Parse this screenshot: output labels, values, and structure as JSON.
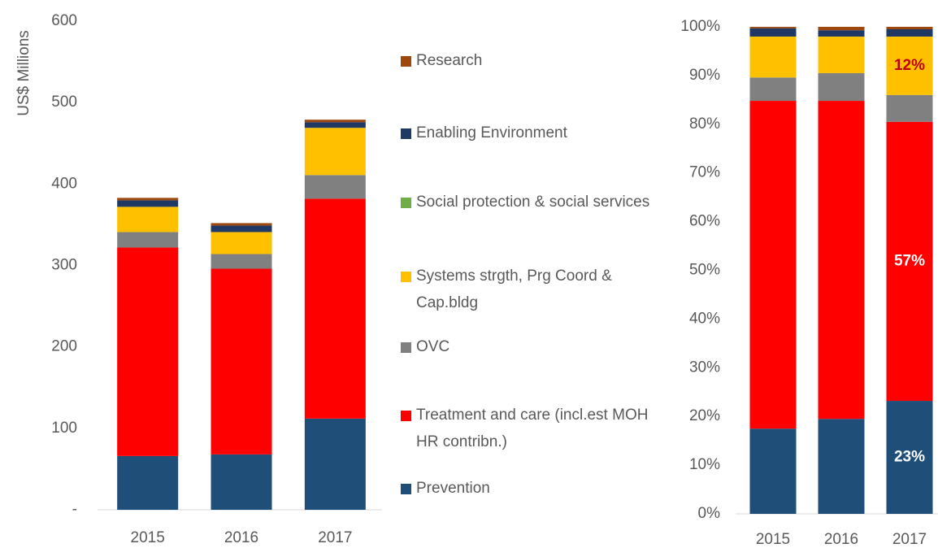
{
  "chart_data": [
    {
      "type": "stacked_bar",
      "y_label": "US$ Millions",
      "categories": [
        "2015",
        "2016",
        "2017"
      ],
      "ylim": [
        0,
        600
      ],
      "yticks": [
        {
          "value": 0,
          "label": "-"
        },
        100,
        200,
        300,
        400,
        500,
        600
      ],
      "series": [
        {
          "name": "Prevention",
          "color": "#1f4e79",
          "values": [
            66,
            68,
            112
          ]
        },
        {
          "name": "Treatment and care (incl.est MOH HR contribn.)",
          "color": "#ff0000",
          "values": [
            256,
            228,
            270
          ]
        },
        {
          "name": "OVC",
          "color": "#808080",
          "values": [
            19,
            18,
            29
          ]
        },
        {
          "name": "Systems strgth, Prg Coord & Cap.bldg",
          "color": "#ffc000",
          "values": [
            31,
            27,
            58
          ]
        },
        {
          "name": "Social protection & social services",
          "color": "#70ad47",
          "values": [
            0,
            0,
            0
          ]
        },
        {
          "name": "Enabling Environment",
          "color": "#203864",
          "values": [
            8,
            8,
            7
          ]
        },
        {
          "name": "Research",
          "color": "#9e480e",
          "values": [
            3,
            3,
            3
          ]
        }
      ]
    },
    {
      "type": "stacked_bar",
      "categories": [
        "2015",
        "2016",
        "2017"
      ],
      "ylim": [
        0,
        100
      ],
      "yticks": [
        {
          "value": 0,
          "label": "0%"
        },
        {
          "value": 10,
          "label": "10%"
        },
        {
          "value": 20,
          "label": "20%"
        },
        {
          "value": 30,
          "label": "30%"
        },
        {
          "value": 40,
          "label": "40%"
        },
        {
          "value": 50,
          "label": "50%"
        },
        {
          "value": 60,
          "label": "60%"
        },
        {
          "value": 70,
          "label": "70%"
        },
        {
          "value": 80,
          "label": "80%"
        },
        {
          "value": 90,
          "label": "90%"
        },
        {
          "value": 100,
          "label": "100%"
        }
      ],
      "series": [
        {
          "color": "#1f4e79",
          "values": [
            17.5,
            19.5,
            23.2
          ],
          "value_labels": [
            null,
            null,
            "23%"
          ],
          "label_color": "#ffffff"
        },
        {
          "color": "#ff0000",
          "values": [
            67.3,
            65.3,
            57.3
          ],
          "value_labels": [
            null,
            null,
            "57%"
          ],
          "label_color": "#ffffff"
        },
        {
          "color": "#808080",
          "values": [
            4.8,
            5.7,
            5.5
          ]
        },
        {
          "color": "#ffc000",
          "values": [
            8.4,
            7.5,
            12
          ],
          "value_labels": [
            null,
            null,
            "12%"
          ],
          "label_color": "#c00000"
        },
        {
          "color": "#70ad47",
          "values": [
            0,
            0,
            0
          ]
        },
        {
          "color": "#203864",
          "values": [
            1.7,
            1.3,
            1.5
          ]
        },
        {
          "color": "#9e480e",
          "values": [
            0.3,
            0.7,
            0.5
          ]
        }
      ]
    }
  ]
}
